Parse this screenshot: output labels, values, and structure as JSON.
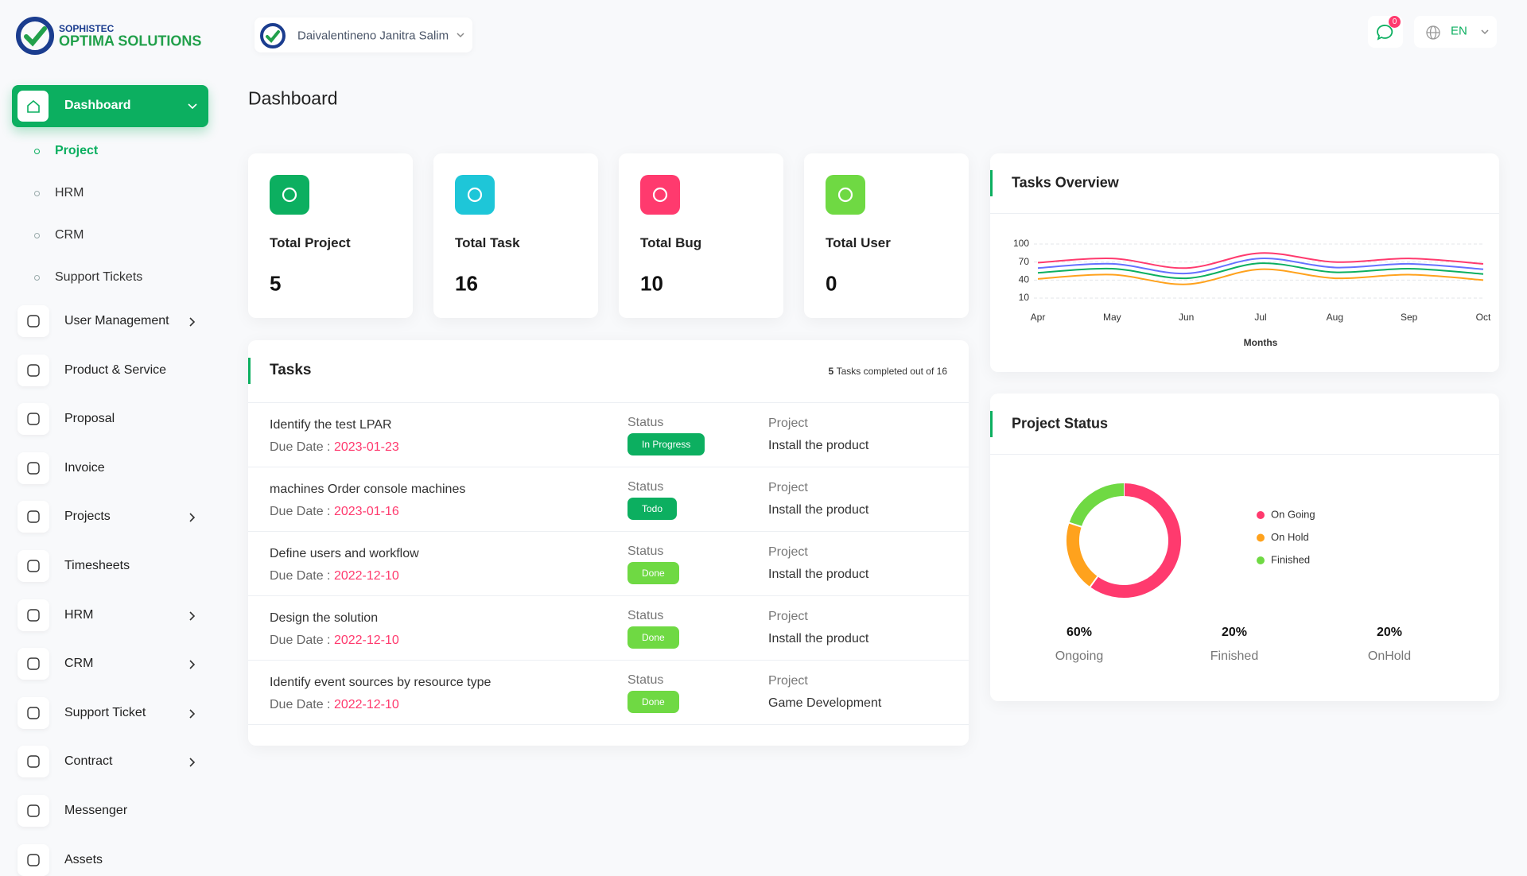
{
  "header": {
    "brand_top": "SOPHISTEC",
    "brand_main": "OPTIMA SOLUTIONS",
    "user": "Daivalentineno Janitra Salim",
    "notifications": 0,
    "language": "EN"
  },
  "sidebar": {
    "active": "Dashboard",
    "submenu": [
      "Project",
      "HRM",
      "CRM",
      "Support Tickets"
    ],
    "items": [
      {
        "label": "User Management",
        "expandable": true
      },
      {
        "label": "Product & Service",
        "expandable": false
      },
      {
        "label": "Proposal",
        "expandable": false
      },
      {
        "label": "Invoice",
        "expandable": false
      },
      {
        "label": "Projects",
        "expandable": true
      },
      {
        "label": "Timesheets",
        "expandable": false
      },
      {
        "label": "HRM",
        "expandable": true
      },
      {
        "label": "CRM",
        "expandable": true
      },
      {
        "label": "Support Ticket",
        "expandable": true
      },
      {
        "label": "Contract",
        "expandable": true
      },
      {
        "label": "Messenger",
        "expandable": false
      },
      {
        "label": "Assets",
        "expandable": false
      }
    ]
  },
  "page_title": "Dashboard",
  "stats": [
    {
      "label": "Total Project",
      "value": 5,
      "color": "#0caf60"
    },
    {
      "label": "Total Task",
      "value": 16,
      "color": "#1ec6d8"
    },
    {
      "label": "Total Bug",
      "value": 10,
      "color": "#ff3a6e"
    },
    {
      "label": "Total User",
      "value": 0,
      "color": "#6fd943"
    }
  ],
  "tasks": {
    "title": "Tasks",
    "completed": 5,
    "completed_text": "Tasks completed out of",
    "total": 16,
    "due_label": "Due Date :",
    "status_label": "Status",
    "project_label": "Project",
    "rows": [
      {
        "name": "Identify the test LPAR",
        "due": "2023-01-23",
        "status": "In Progress",
        "status_color": "#0caf60",
        "project": "Install the product"
      },
      {
        "name": "machines Order console machines",
        "due": "2023-01-16",
        "status": "Todo",
        "status_color": "#0caf60",
        "project": "Install the product"
      },
      {
        "name": "Define users and workflow",
        "due": "2022-12-10",
        "status": "Done",
        "status_color": "#6fd943",
        "project": "Install the product"
      },
      {
        "name": "Design the solution",
        "due": "2022-12-10",
        "status": "Done",
        "status_color": "#6fd943",
        "project": "Install the product"
      },
      {
        "name": "Identify event sources by resource type",
        "due": "2022-12-10",
        "status": "Done",
        "status_color": "#6fd943",
        "project": "Game Development"
      }
    ]
  },
  "project_summary": [
    {
      "value": "60%",
      "label": "Ongoing"
    },
    {
      "value": "20%",
      "label": "Finished"
    },
    {
      "value": "20%",
      "label": "OnHold"
    }
  ],
  "chart_data": [
    {
      "type": "line",
      "title": "Tasks Overview",
      "x_label": "Months",
      "categories": [
        "Apr",
        "May",
        "Jun",
        "Jul",
        "Aug",
        "Sep",
        "Oct"
      ],
      "series": [
        {
          "color": "#ff3a6e",
          "values": [
            69,
            76,
            60,
            85,
            70,
            76,
            67
          ]
        },
        {
          "color": "#6571ff",
          "values": [
            60,
            67,
            51,
            76,
            61,
            67,
            58
          ]
        },
        {
          "color": "#0caf60",
          "values": [
            52,
            59,
            43,
            68,
            53,
            59,
            50
          ]
        },
        {
          "color": "#ffa21d",
          "values": [
            42,
            49,
            33,
            58,
            43,
            49,
            40
          ]
        }
      ],
      "ylim": [
        10,
        100
      ],
      "yticks": [
        100,
        70,
        40,
        10
      ],
      "grid": true
    },
    {
      "type": "donut",
      "title": "Project Status",
      "categories": [
        "On Going",
        "On Hold",
        "Finished"
      ],
      "values": [
        60,
        20,
        20
      ],
      "colors": [
        "#ff3a6e",
        "#ffa21d",
        "#6fd943"
      ]
    }
  ]
}
